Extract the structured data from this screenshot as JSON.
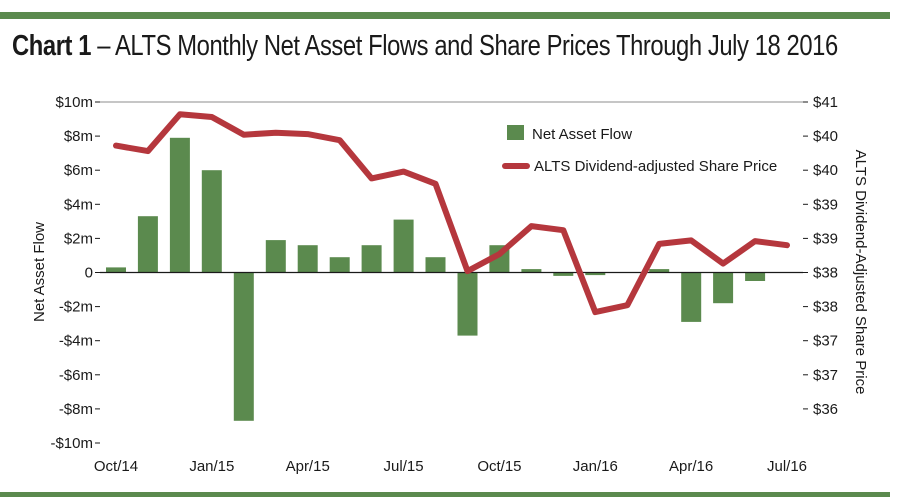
{
  "title": {
    "lead": "Chart 1",
    "dash": " – ",
    "text": "ALTS Monthly Net Asset Flows and Share Prices Through July 18 2016"
  },
  "chart_data": {
    "type": "bar",
    "title": "Chart 1 – ALTS Monthly Net Asset Flows and Share Prices Through July 18 2016",
    "ylabel_left": "Net Asset Flow",
    "ylabel_right": "ALTS Dividend-Adjusted Share Price",
    "ylim_left": [
      -10,
      10
    ],
    "ylim_right": [
      36,
      41
    ],
    "left_ticks": [
      {
        "value": 10,
        "label": "$10m"
      },
      {
        "value": 8,
        "label": "$8m"
      },
      {
        "value": 6,
        "label": "$6m"
      },
      {
        "value": 4,
        "label": "$4m"
      },
      {
        "value": 2,
        "label": "$2m"
      },
      {
        "value": 0,
        "label": "0"
      },
      {
        "value": -2,
        "label": "-$2m"
      },
      {
        "value": -4,
        "label": "-$4m"
      },
      {
        "value": -6,
        "label": "-$6m"
      },
      {
        "value": -8,
        "label": "-$8m"
      },
      {
        "value": -10,
        "label": "-$10m"
      }
    ],
    "right_ticks": [
      {
        "value": 41,
        "label": "$41"
      },
      {
        "value": 40.5,
        "label": "$40"
      },
      {
        "value": 40,
        "label": "$40"
      },
      {
        "value": 39.5,
        "label": "$39"
      },
      {
        "value": 39,
        "label": "$39"
      },
      {
        "value": 38.5,
        "label": "$38"
      },
      {
        "value": 38,
        "label": "$38"
      },
      {
        "value": 37.5,
        "label": "$37"
      },
      {
        "value": 37,
        "label": "$37"
      },
      {
        "value": 36.5,
        "label": "$36"
      }
    ],
    "x_ticks": [
      {
        "index": 0,
        "label": "Oct/14"
      },
      {
        "index": 3,
        "label": "Jan/15"
      },
      {
        "index": 6,
        "label": "Apr/15"
      },
      {
        "index": 9,
        "label": "Jul/15"
      },
      {
        "index": 12,
        "label": "Oct/15"
      },
      {
        "index": 15,
        "label": "Jan/16"
      },
      {
        "index": 18,
        "label": "Apr/16"
      },
      {
        "index": 21,
        "label": "Jul/16"
      }
    ],
    "categories": [
      "Oct/14",
      "Nov/14",
      "Dec/14",
      "Jan/15",
      "Feb/15",
      "Mar/15",
      "Apr/15",
      "May/15",
      "Jun/15",
      "Jul/15",
      "Aug/15",
      "Sep/15",
      "Oct/15",
      "Nov/15",
      "Dec/15",
      "Jan/16",
      "Feb/16",
      "Mar/16",
      "Apr/16",
      "May/16",
      "Jun/16",
      "Jul/16"
    ],
    "series": [
      {
        "name": "Net Asset Flow",
        "type": "bar",
        "axis": "left",
        "color": "#5b8a4e",
        "values": [
          0.3,
          3.3,
          7.9,
          6.0,
          -8.7,
          1.9,
          1.6,
          0.9,
          1.6,
          3.1,
          0.9,
          -3.7,
          1.6,
          0.2,
          -0.2,
          -0.15,
          0.0,
          0.2,
          -2.9,
          -1.8,
          -0.5,
          0.0
        ]
      },
      {
        "name": "ALTS Dividend-adjusted Share Price",
        "type": "line",
        "axis": "right",
        "color": "#b5373d",
        "values": [
          40.36,
          40.28,
          40.82,
          40.78,
          40.52,
          40.55,
          40.53,
          40.44,
          39.88,
          39.98,
          39.8,
          38.52,
          38.77,
          39.18,
          39.12,
          37.92,
          38.02,
          38.92,
          38.97,
          38.63,
          38.96,
          38.9
        ]
      }
    ],
    "legend": {
      "position": "top-right",
      "bar_label": "Net Asset Flow",
      "line_label": "ALTS Dividend-adjusted Share Price"
    },
    "grid": false
  }
}
